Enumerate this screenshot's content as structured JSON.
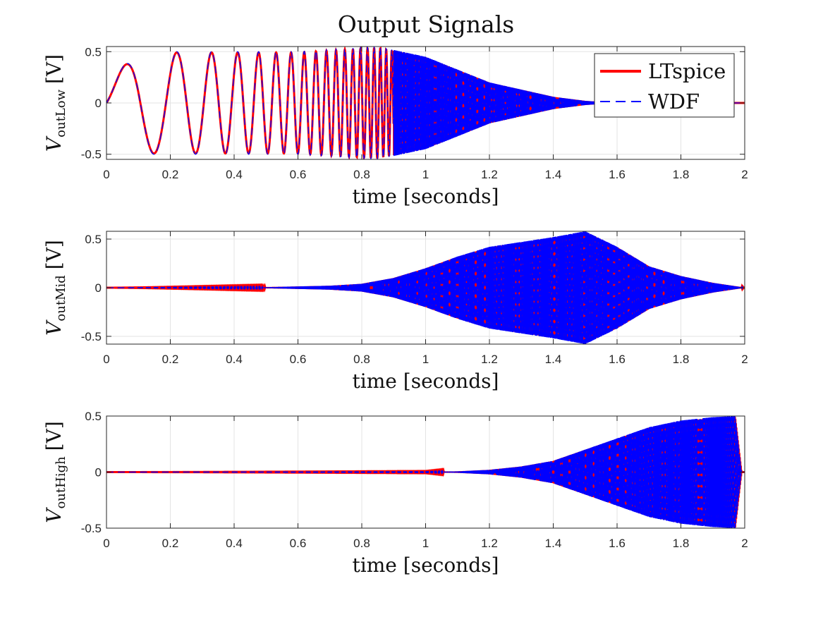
{
  "figure": {
    "title": "Output Signals"
  },
  "colors": {
    "ltspice": "#ff0000",
    "wdf": "#0000ff",
    "grid": "#e3e3e3",
    "axis": "#262626"
  },
  "chart_data": [
    {
      "type": "line",
      "title": "Output Signals",
      "xlabel": "time [seconds]",
      "ylabel_main": "V",
      "ylabel_sub": "outLow",
      "ylabel_unit": "[V]",
      "xlim": [
        0,
        2
      ],
      "ylim": [
        -0.55,
        0.55
      ],
      "xticks": [
        "0",
        "0.2",
        "0.4",
        "0.6",
        "0.8",
        "1",
        "1.2",
        "1.4",
        "1.6",
        "1.8",
        "2"
      ],
      "yticks": [
        "-0.5",
        "0",
        "0.5"
      ],
      "grid": true,
      "legend_placement": "top-right",
      "series": [
        {
          "name": "LTspice",
          "style": "solid"
        },
        {
          "name": "WDF",
          "style": "dashed"
        }
      ],
      "signal": "log-sweep sine through low band filter; amplitude 0.5 V, envelope peaks near 0.8 s and decays to 0 by 1.5 s",
      "envelope": {
        "t": [
          0,
          0.1,
          0.6,
          0.85,
          1.0,
          1.2,
          1.4,
          1.5,
          1.6,
          2.0
        ],
        "amp": [
          0.2,
          0.5,
          0.5,
          0.55,
          0.45,
          0.2,
          0.06,
          0.02,
          0.0,
          0.0
        ]
      }
    },
    {
      "type": "line",
      "xlabel": "time [seconds]",
      "ylabel_main": "V",
      "ylabel_sub": "outMid",
      "ylabel_unit": "[V]",
      "xlim": [
        0,
        2
      ],
      "ylim": [
        -0.58,
        0.58
      ],
      "xticks": [
        "0",
        "0.2",
        "0.4",
        "0.6",
        "0.8",
        "1",
        "1.2",
        "1.4",
        "1.6",
        "1.8",
        "2"
      ],
      "yticks": [
        "-0.5",
        "0",
        "0.5"
      ],
      "grid": true,
      "series": [
        {
          "name": "LTspice",
          "style": "solid"
        },
        {
          "name": "WDF",
          "style": "dashed"
        }
      ],
      "envelope": {
        "t": [
          0,
          0.5,
          0.7,
          0.8,
          0.9,
          1.0,
          1.1,
          1.2,
          1.3,
          1.4,
          1.5,
          1.6,
          1.7,
          1.8,
          1.9,
          2.0
        ],
        "amp": [
          0.0,
          0.005,
          0.02,
          0.04,
          0.1,
          0.2,
          0.32,
          0.42,
          0.47,
          0.52,
          0.58,
          0.42,
          0.22,
          0.12,
          0.05,
          0.0
        ]
      }
    },
    {
      "type": "line",
      "xlabel": "time [seconds]",
      "ylabel_main": "V",
      "ylabel_sub": "outHigh",
      "ylabel_unit": "[V]",
      "xlim": [
        0,
        2
      ],
      "ylim": [
        -0.5,
        0.5
      ],
      "xticks": [
        "0",
        "0.2",
        "0.4",
        "0.6",
        "0.8",
        "1",
        "1.2",
        "1.4",
        "1.6",
        "1.8",
        "2"
      ],
      "yticks": [
        "-0.5",
        "0",
        "0.5"
      ],
      "grid": true,
      "series": [
        {
          "name": "LTspice",
          "style": "solid"
        },
        {
          "name": "WDF",
          "style": "dashed"
        }
      ],
      "envelope": {
        "t": [
          0,
          1.0,
          1.1,
          1.2,
          1.3,
          1.4,
          1.5,
          1.6,
          1.7,
          1.8,
          1.9,
          1.97,
          1.99,
          2.0
        ],
        "amp": [
          0.0,
          0.002,
          0.006,
          0.02,
          0.05,
          0.1,
          0.2,
          0.3,
          0.4,
          0.46,
          0.49,
          0.5,
          0.0,
          0.0
        ]
      }
    }
  ]
}
